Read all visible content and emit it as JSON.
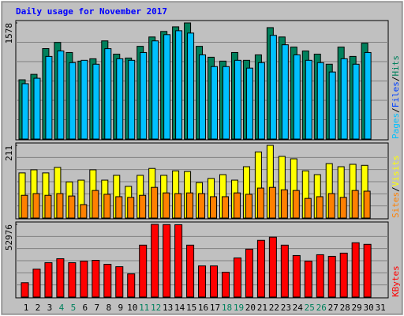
{
  "chart_data": {
    "type": "bar",
    "title": "Daily usage for November 2017",
    "categories": [
      "1",
      "2",
      "3",
      "4",
      "5",
      "6",
      "7",
      "8",
      "9",
      "10",
      "11",
      "12",
      "13",
      "14",
      "15",
      "16",
      "17",
      "18",
      "19",
      "20",
      "21",
      "22",
      "23",
      "24",
      "25",
      "26",
      "27",
      "28",
      "29",
      "30",
      "31"
    ],
    "category_colors": [
      "#000000",
      "#000000",
      "#000000",
      "#00805c",
      "#00805c",
      "#000000",
      "#000000",
      "#000000",
      "#000000",
      "#000000",
      "#00805c",
      "#00805c",
      "#000000",
      "#000000",
      "#000000",
      "#000000",
      "#000000",
      "#00805c",
      "#00805c",
      "#000000",
      "#000000",
      "#000000",
      "#000000",
      "#000000",
      "#00805c",
      "#00805c",
      "#000000",
      "#000000",
      "#000000",
      "#000000",
      "#000000"
    ],
    "separator": "/",
    "panels": [
      {
        "ylim": [
          0,
          1578
        ],
        "yticks": [
          1578
        ],
        "series": [
          {
            "name": "Hits",
            "color": "#00805c",
            "values": [
              805,
              879,
              1229,
              1313,
              1176,
              1059,
              1091,
              1334,
              1154,
              1101,
              1260,
              1387,
              1462,
              1525,
              1578,
              1260,
              1112,
              1059,
              1176,
              1070,
              1144,
              1514,
              1387,
              1250,
              1197,
              1154,
              1017,
              1250,
              1123,
              1303,
              null
            ]
          },
          {
            "name": "Files",
            "color": "#0040ff",
            "values": [
              414,
              454,
              618,
              658,
              571,
              589,
              559,
              675,
              600,
              589,
              647,
              734,
              780,
              810,
              792,
              629,
              542,
              542,
              589,
              530,
              571,
              775,
              705,
              629,
              589,
              571,
              501,
              600,
              559,
              647,
              null
            ]
          },
          {
            "name": "Pages",
            "color": "#00c0ff",
            "values": [
              752,
              826,
              1123,
              1197,
              1038,
              1070,
              1017,
              1228,
              1091,
              1070,
              1176,
              1334,
              1419,
              1472,
              1440,
              1144,
              985,
              985,
              1070,
              964,
              1038,
              1409,
              1281,
              1144,
              1070,
              1038,
              911,
              1091,
              1017,
              1176,
              null
            ]
          }
        ]
      },
      {
        "ylim": [
          0,
          211
        ],
        "yticks": [
          211
        ],
        "series": [
          {
            "name": "Visits",
            "color": "#ffff00",
            "values": [
              131,
              140,
              131,
              147,
              105,
              110,
              140,
              110,
              124,
              92,
              124,
              144,
              124,
              137,
              135,
              103,
              115,
              126,
              110,
              149,
              192,
              211,
              179,
              172,
              137,
              126,
              158,
              149,
              156,
              153,
              null
            ]
          },
          {
            "name": "Sites",
            "color": "#ff8000",
            "values": [
              66,
              71,
              66,
              71,
              64,
              39,
              80,
              69,
              62,
              60,
              66,
              89,
              73,
              71,
              73,
              71,
              62,
              62,
              73,
              69,
              87,
              89,
              82,
              80,
              57,
              62,
              71,
              60,
              80,
              78,
              null
            ]
          }
        ]
      },
      {
        "ylim": [
          0,
          52976
        ],
        "yticks": [
          52976
        ],
        "series": [
          {
            "name": "KBytes",
            "color": "#ff0000",
            "values": [
              10476,
              20370,
              25026,
              27936,
              25026,
              26190,
              26772,
              23862,
              22116,
              16878,
              37830,
              52976,
              52800,
              52700,
              37830,
              22698,
              22698,
              18042,
              28518,
              34920,
              41322,
              43650,
              37830,
              30264,
              26190,
              30846,
              29682,
              32010,
              39576,
              38412,
              null
            ]
          }
        ]
      }
    ]
  }
}
